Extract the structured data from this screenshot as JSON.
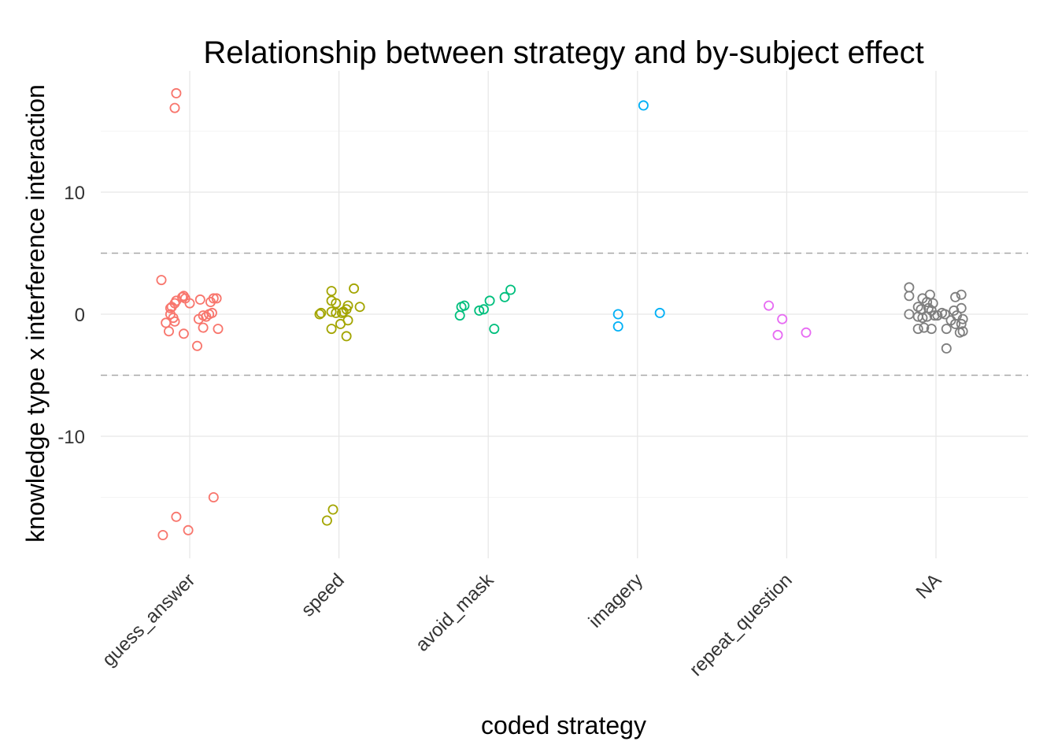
{
  "chart_data": {
    "type": "scatter",
    "title": "Relationship between strategy and by-subject effect",
    "xlabel": "coded strategy",
    "ylabel": "knowledge type x interference interaction",
    "categories": [
      "guess_answer",
      "speed",
      "avoid_mask",
      "imagery",
      "repeat_question",
      "NA"
    ],
    "y_ticks": [
      {
        "value": 10,
        "label": "10"
      },
      {
        "value": 0,
        "label": "0"
      },
      {
        "value": -10,
        "label": "-10"
      }
    ],
    "ylim": [
      -19.8,
      19.8
    ],
    "minor_grid": [
      -15,
      -5,
      5,
      15
    ],
    "reference_lines": [
      5,
      -5
    ],
    "grid": true,
    "legend": "none",
    "series": [
      {
        "category": "guess_answer",
        "color": "#F8766D",
        "points": [
          {
            "x": -0.09,
            "y": 18.1
          },
          {
            "x": -0.1,
            "y": 16.9
          },
          {
            "x": -0.19,
            "y": 2.8
          },
          {
            "x": -0.13,
            "y": 0.5
          },
          {
            "x": -0.12,
            "y": 0.6
          },
          {
            "x": -0.1,
            "y": 0.9
          },
          {
            "x": -0.09,
            "y": 1.1
          },
          {
            "x": -0.05,
            "y": 1.4
          },
          {
            "x": -0.04,
            "y": 1.5
          },
          {
            "x": -0.03,
            "y": 1.3
          },
          {
            "x": 0.0,
            "y": 0.9
          },
          {
            "x": 0.07,
            "y": 1.2
          },
          {
            "x": 0.14,
            "y": 1.0
          },
          {
            "x": 0.16,
            "y": 1.3
          },
          {
            "x": 0.18,
            "y": 1.3
          },
          {
            "x": -0.13,
            "y": 0.0
          },
          {
            "x": -0.11,
            "y": -0.3
          },
          {
            "x": -0.1,
            "y": -0.6
          },
          {
            "x": -0.16,
            "y": -0.7
          },
          {
            "x": -0.14,
            "y": -1.4
          },
          {
            "x": -0.04,
            "y": -1.6
          },
          {
            "x": 0.06,
            "y": -0.4
          },
          {
            "x": 0.09,
            "y": -0.1
          },
          {
            "x": 0.11,
            "y": -0.2
          },
          {
            "x": 0.13,
            "y": 0.0
          },
          {
            "x": 0.15,
            "y": 0.1
          },
          {
            "x": 0.09,
            "y": -1.1
          },
          {
            "x": 0.19,
            "y": -1.2
          },
          {
            "x": 0.05,
            "y": -2.6
          },
          {
            "x": 0.16,
            "y": -15.0
          },
          {
            "x": -0.09,
            "y": -16.6
          },
          {
            "x": -0.01,
            "y": -17.7
          },
          {
            "x": -0.18,
            "y": -18.1
          }
        ]
      },
      {
        "category": "speed",
        "color": "#A3A500",
        "points": [
          {
            "x": -0.13,
            "y": 0.0
          },
          {
            "x": -0.12,
            "y": 0.1
          },
          {
            "x": -0.05,
            "y": 0.2
          },
          {
            "x": -0.05,
            "y": 1.9
          },
          {
            "x": -0.05,
            "y": 1.1
          },
          {
            "x": -0.02,
            "y": 0.9
          },
          {
            "x": 0.02,
            "y": 0.1
          },
          {
            "x": 0.03,
            "y": 0.2
          },
          {
            "x": 0.05,
            "y": 0.4
          },
          {
            "x": 0.06,
            "y": 0.7
          },
          {
            "x": 0.1,
            "y": 2.1
          },
          {
            "x": 0.14,
            "y": 0.6
          },
          {
            "x": -0.02,
            "y": 0.1
          },
          {
            "x": 0.06,
            "y": -0.5
          },
          {
            "x": 0.01,
            "y": -0.8
          },
          {
            "x": -0.05,
            "y": -1.2
          },
          {
            "x": 0.05,
            "y": -1.8
          },
          {
            "x": -0.04,
            "y": -16.0
          },
          {
            "x": -0.08,
            "y": -16.9
          }
        ]
      },
      {
        "category": "avoid_mask",
        "color": "#00BF7D",
        "points": [
          {
            "x": -0.19,
            "y": -0.1
          },
          {
            "x": -0.18,
            "y": 0.6
          },
          {
            "x": -0.16,
            "y": 0.7
          },
          {
            "x": -0.06,
            "y": 0.3
          },
          {
            "x": -0.03,
            "y": 0.4
          },
          {
            "x": 0.01,
            "y": 1.1
          },
          {
            "x": 0.11,
            "y": 1.4
          },
          {
            "x": 0.15,
            "y": 2.0
          },
          {
            "x": 0.04,
            "y": -1.2
          }
        ]
      },
      {
        "category": "imagery",
        "color": "#00B0F6",
        "points": [
          {
            "x": 0.04,
            "y": 17.1
          },
          {
            "x": -0.13,
            "y": 0.0
          },
          {
            "x": -0.13,
            "y": -1.0
          },
          {
            "x": 0.15,
            "y": 0.1
          }
        ]
      },
      {
        "category": "repeat_question",
        "color": "#E76BF3",
        "points": [
          {
            "x": -0.12,
            "y": 0.7
          },
          {
            "x": -0.03,
            "y": -0.4
          },
          {
            "x": -0.06,
            "y": -1.7
          },
          {
            "x": 0.13,
            "y": -1.5
          }
        ]
      },
      {
        "category": "NA",
        "color": "#7F7F7F",
        "points": [
          {
            "x": -0.18,
            "y": 2.2
          },
          {
            "x": -0.18,
            "y": 1.5
          },
          {
            "x": -0.18,
            "y": 0.0
          },
          {
            "x": -0.12,
            "y": 0.6
          },
          {
            "x": -0.09,
            "y": 1.3
          },
          {
            "x": -0.06,
            "y": 1.0
          },
          {
            "x": -0.04,
            "y": 1.6
          },
          {
            "x": -0.02,
            "y": 0.9
          },
          {
            "x": -0.05,
            "y": 0.5
          },
          {
            "x": -0.03,
            "y": 0.3
          },
          {
            "x": -0.1,
            "y": 0.4
          },
          {
            "x": -0.12,
            "y": -0.2
          },
          {
            "x": -0.09,
            "y": -0.3
          },
          {
            "x": -0.06,
            "y": -0.2
          },
          {
            "x": -0.01,
            "y": -0.1
          },
          {
            "x": 0.01,
            "y": -0.1
          },
          {
            "x": 0.04,
            "y": 0.1
          },
          {
            "x": 0.06,
            "y": 0.0
          },
          {
            "x": 0.1,
            "y": -0.5
          },
          {
            "x": 0.12,
            "y": 0.3
          },
          {
            "x": 0.14,
            "y": -0.1
          },
          {
            "x": 0.17,
            "y": 0.5
          },
          {
            "x": 0.18,
            "y": -0.4
          },
          {
            "x": 0.13,
            "y": 1.4
          },
          {
            "x": 0.17,
            "y": 1.6
          },
          {
            "x": -0.12,
            "y": -1.2
          },
          {
            "x": -0.08,
            "y": -1.1
          },
          {
            "x": -0.03,
            "y": -1.2
          },
          {
            "x": 0.07,
            "y": -1.2
          },
          {
            "x": 0.13,
            "y": -0.8
          },
          {
            "x": 0.17,
            "y": -0.8
          },
          {
            "x": 0.16,
            "y": -1.5
          },
          {
            "x": 0.18,
            "y": -1.4
          },
          {
            "x": 0.07,
            "y": -2.8
          }
        ]
      }
    ]
  }
}
